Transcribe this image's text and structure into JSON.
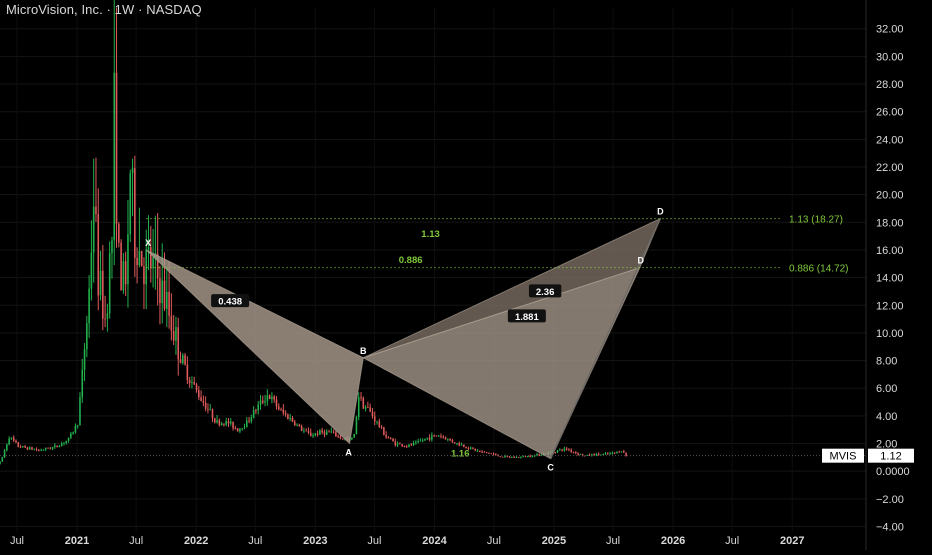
{
  "header": {
    "title": "MicroVision, Inc. · 1W · NASDAQ"
  },
  "colors": {
    "background": "#000000",
    "up": "#22b14c",
    "down": "#e05a5a",
    "pattern_fill": "#a89a8c",
    "label_text": "#ffffff",
    "fib_text": "#7fc93a",
    "axis_text": "#d9d9d9"
  },
  "chart_data": {
    "type": "candlestick",
    "symbol": "MVIS",
    "last_price": 1.12,
    "price_tag": {
      "symbol": "MVIS",
      "value": "1.12"
    },
    "y_axis": {
      "range": [
        -4.4,
        33.5
      ],
      "ticks": [
        {
          "v": 32,
          "l": "32.00"
        },
        {
          "v": 30,
          "l": "30.00"
        },
        {
          "v": 28,
          "l": "28.00"
        },
        {
          "v": 26,
          "l": "26.00"
        },
        {
          "v": 24,
          "l": "24.00"
        },
        {
          "v": 22,
          "l": "22.00"
        },
        {
          "v": 20,
          "l": "20.00"
        },
        {
          "v": 18,
          "l": "18.00"
        },
        {
          "v": 16,
          "l": "16.00"
        },
        {
          "v": 14,
          "l": "14.00"
        },
        {
          "v": 12,
          "l": "12.00"
        },
        {
          "v": 10,
          "l": "10.00"
        },
        {
          "v": 8,
          "l": "8.00"
        },
        {
          "v": 6,
          "l": "6.00"
        },
        {
          "v": 4,
          "l": "4.00"
        },
        {
          "v": 2,
          "l": "2.00"
        },
        {
          "v": 0,
          "l": "0.0000"
        },
        {
          "v": -2,
          "l": "−2.00"
        },
        {
          "v": -4,
          "l": "−4.00"
        }
      ]
    },
    "x_axis": {
      "range": [
        "2020-05-10",
        "2027-08-15"
      ],
      "ticks": [
        {
          "d": "2020-07-01",
          "l": "Jul",
          "bold": false
        },
        {
          "d": "2021-01-01",
          "l": "2021",
          "bold": true
        },
        {
          "d": "2021-07-01",
          "l": "Jul",
          "bold": false
        },
        {
          "d": "2022-01-01",
          "l": "2022",
          "bold": true
        },
        {
          "d": "2022-07-01",
          "l": "Jul",
          "bold": false
        },
        {
          "d": "2023-01-01",
          "l": "2023",
          "bold": true
        },
        {
          "d": "2023-07-01",
          "l": "Jul",
          "bold": false
        },
        {
          "d": "2024-01-01",
          "l": "2024",
          "bold": true
        },
        {
          "d": "2024-07-01",
          "l": "Jul",
          "bold": false
        },
        {
          "d": "2025-01-01",
          "l": "2025",
          "bold": true
        },
        {
          "d": "2025-07-01",
          "l": "Jul",
          "bold": false
        },
        {
          "d": "2026-01-01",
          "l": "2026",
          "bold": true
        },
        {
          "d": "2026-07-01",
          "l": "Jul",
          "bold": false
        },
        {
          "d": "2027-01-01",
          "l": "2027",
          "bold": true
        }
      ]
    },
    "price_path": [
      [
        "2020-05-10",
        0.5
      ],
      [
        "2020-06-07",
        2.5
      ],
      [
        "2020-07-05",
        1.8
      ],
      [
        "2020-09-06",
        1.5
      ],
      [
        "2020-11-01",
        1.8
      ],
      [
        "2020-12-06",
        2.3
      ],
      [
        "2021-01-03",
        3.5
      ],
      [
        "2021-01-17",
        7.0
      ],
      [
        "2021-02-07",
        13.0
      ],
      [
        "2021-02-21",
        20.0
      ],
      [
        "2021-03-07",
        14.0
      ],
      [
        "2021-03-28",
        11.0
      ],
      [
        "2021-04-18",
        17.0
      ],
      [
        "2021-04-25",
        26.0
      ],
      [
        "2021-05-09",
        15.0
      ],
      [
        "2021-05-30",
        13.0
      ],
      [
        "2021-06-13",
        22.0
      ],
      [
        "2021-06-27",
        17.0
      ],
      [
        "2021-07-11",
        16.0
      ],
      [
        "2021-07-25",
        15.0
      ],
      [
        "2021-08-15",
        15.0
      ],
      [
        "2021-09-05",
        14.0
      ],
      [
        "2021-10-03",
        12.0
      ],
      [
        "2021-11-07",
        9.0
      ],
      [
        "2021-12-05",
        7.0
      ],
      [
        "2022-01-09",
        5.5
      ],
      [
        "2022-02-06",
        4.5
      ],
      [
        "2022-03-06",
        3.5
      ],
      [
        "2022-04-10",
        3.5
      ],
      [
        "2022-05-08",
        3.0
      ],
      [
        "2022-06-05",
        3.5
      ],
      [
        "2022-07-03",
        4.5
      ],
      [
        "2022-08-07",
        5.5
      ],
      [
        "2022-08-21",
        5.2
      ],
      [
        "2022-09-18",
        4.3
      ],
      [
        "2022-10-16",
        3.8
      ],
      [
        "2022-11-20",
        3.0
      ],
      [
        "2022-12-18",
        2.6
      ],
      [
        "2023-01-15",
        2.8
      ],
      [
        "2023-02-19",
        2.8
      ],
      [
        "2023-03-19",
        2.4
      ],
      [
        "2023-04-16",
        2.2
      ],
      [
        "2023-04-30",
        2.6
      ],
      [
        "2023-05-14",
        5.5
      ],
      [
        "2023-05-28",
        4.8
      ],
      [
        "2023-06-11",
        4.5
      ],
      [
        "2023-07-09",
        3.5
      ],
      [
        "2023-08-06",
        2.5
      ],
      [
        "2023-09-03",
        2.0
      ],
      [
        "2023-10-08",
        1.8
      ],
      [
        "2023-11-05",
        2.0
      ],
      [
        "2023-12-10",
        2.4
      ],
      [
        "2024-01-14",
        2.6
      ],
      [
        "2024-02-11",
        2.3
      ],
      [
        "2024-03-10",
        2.0
      ],
      [
        "2024-04-14",
        1.7
      ],
      [
        "2024-05-19",
        1.4
      ],
      [
        "2024-06-16",
        1.3
      ],
      [
        "2024-07-14",
        1.1
      ],
      [
        "2024-08-18",
        1.0
      ],
      [
        "2024-09-15",
        1.0
      ],
      [
        "2024-10-20",
        1.1
      ],
      [
        "2024-11-17",
        1.2
      ],
      [
        "2024-12-15",
        1.3
      ],
      [
        "2025-01-12",
        1.5
      ],
      [
        "2025-02-09",
        1.6
      ],
      [
        "2025-03-09",
        1.3
      ],
      [
        "2025-04-06",
        1.1
      ],
      [
        "2025-05-04",
        1.2
      ],
      [
        "2025-06-01",
        1.2
      ],
      [
        "2025-07-06",
        1.3
      ],
      [
        "2025-07-27",
        1.5
      ],
      [
        "2025-08-10",
        1.12
      ]
    ],
    "pattern_points": [
      {
        "name": "X",
        "date": "2021-08-01",
        "price": 16.0
      },
      {
        "name": "A",
        "date": "2023-04-16",
        "price": 2.0
      },
      {
        "name": "B",
        "date": "2023-05-28",
        "price": 8.2
      },
      {
        "name": "C",
        "date": "2024-12-22",
        "price": 0.9
      },
      {
        "name": "D",
        "date": "2025-09-21",
        "price": 14.72
      },
      {
        "name": "D",
        "date": "2025-11-23",
        "price": 18.27
      }
    ],
    "ratio_labels": [
      {
        "text": "0.438",
        "date": "2022-04-15",
        "price": 12.3,
        "boxed": true
      },
      {
        "text": "1.16",
        "date": "2024-03-20",
        "price": 1.3,
        "boxed": false
      },
      {
        "text": "2.36",
        "date": "2024-12-05",
        "price": 13.0,
        "boxed": true
      },
      {
        "text": "1.881",
        "date": "2024-10-10",
        "price": 11.2,
        "boxed": true
      },
      {
        "text": "1.13",
        "date": "2023-12-20",
        "price": 17.2,
        "boxed": false
      },
      {
        "text": "0.886",
        "date": "2023-10-20",
        "price": 15.3,
        "boxed": false
      }
    ],
    "fib_levels": [
      {
        "label": "1.13 (18.27)",
        "price": 18.27,
        "from": "2021-08-01"
      },
      {
        "label": "0.886 (14.72)",
        "price": 14.72,
        "from": "2021-08-01"
      }
    ]
  }
}
